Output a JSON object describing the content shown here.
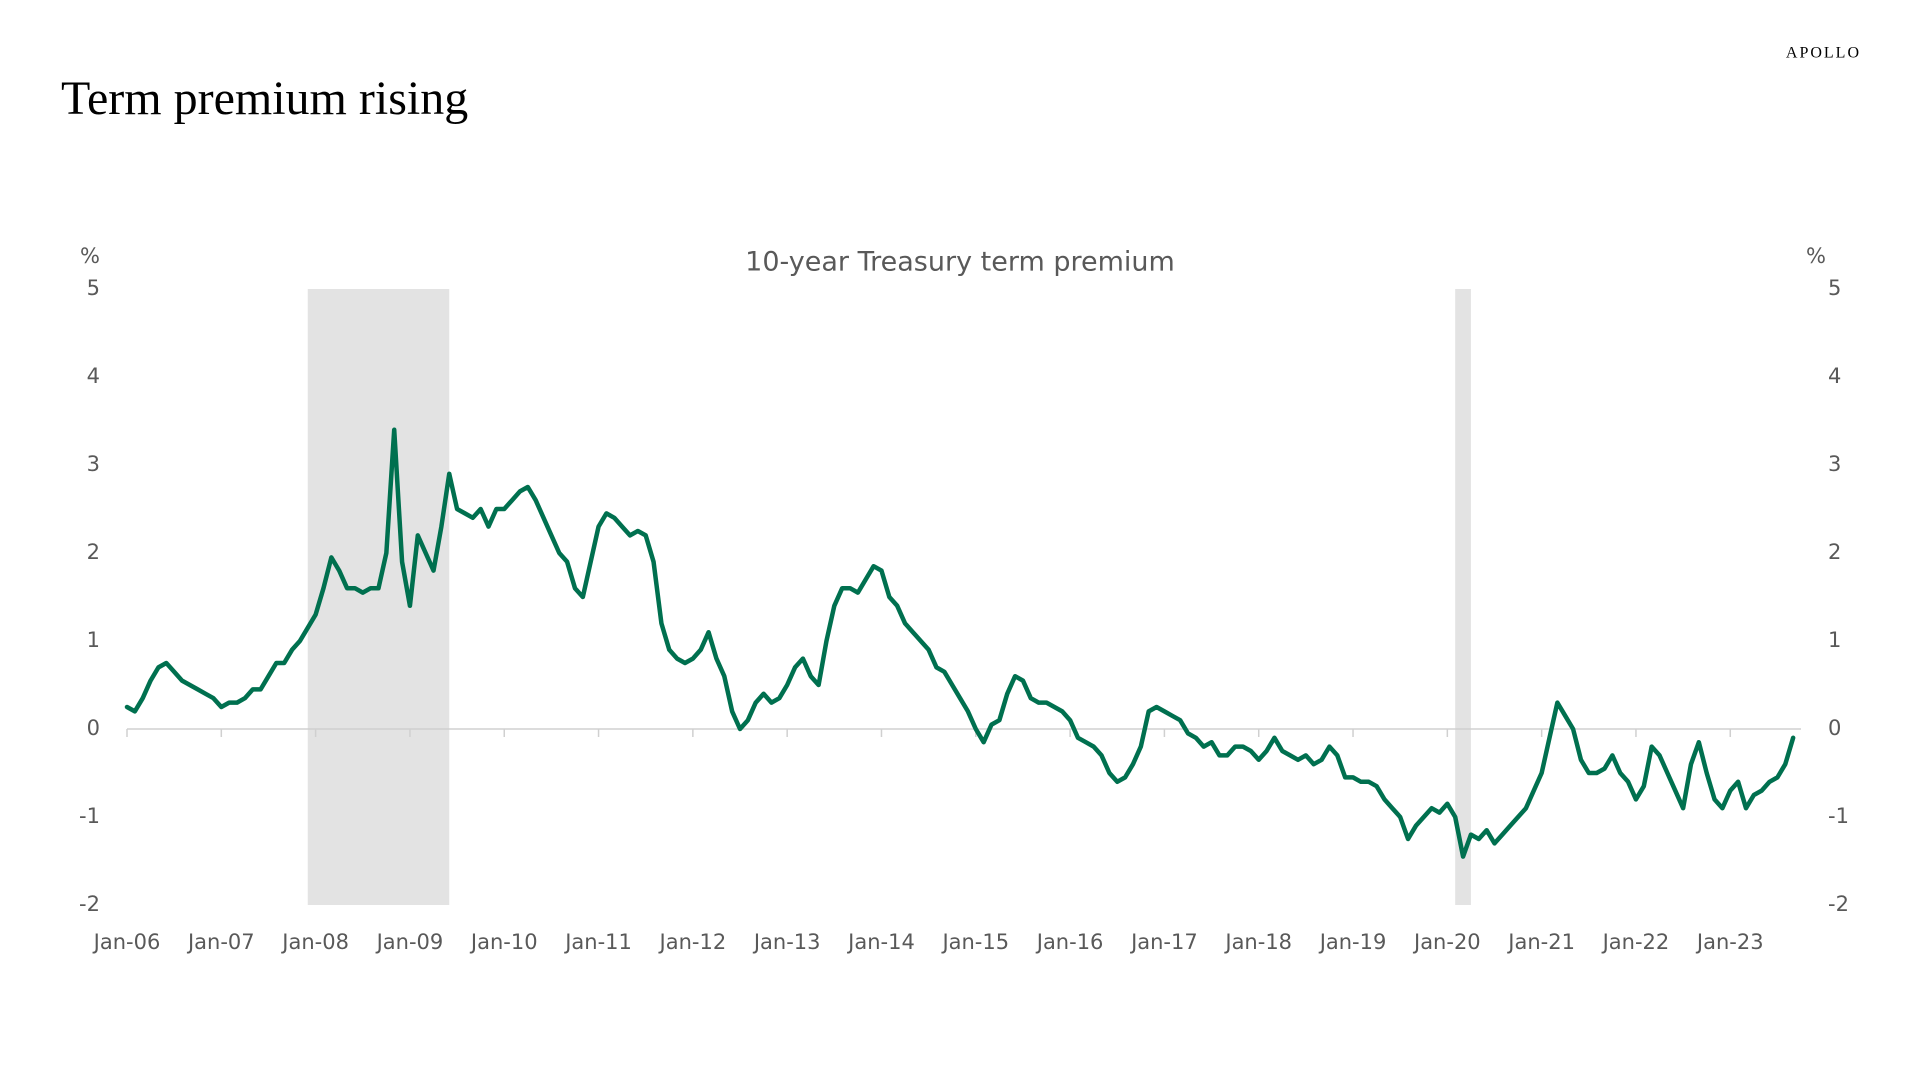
{
  "brand": "APOLLO",
  "chart_data": {
    "type": "line",
    "title": "Term premium rising",
    "subtitle": "10-year Treasury term premium",
    "y_label": "%",
    "y2_label": "%",
    "color": "#00704f",
    "shade_color": "#e3e3e3",
    "xlim": [
      "2006-01",
      "2023-10"
    ],
    "xticks": [
      {
        "value": "2006-01",
        "label": "Jan-06"
      },
      {
        "value": "2007-01",
        "label": "Jan-07"
      },
      {
        "value": "2008-01",
        "label": "Jan-08"
      },
      {
        "value": "2009-01",
        "label": "Jan-09"
      },
      {
        "value": "2010-01",
        "label": "Jan-10"
      },
      {
        "value": "2011-01",
        "label": "Jan-11"
      },
      {
        "value": "2012-01",
        "label": "Jan-12"
      },
      {
        "value": "2013-01",
        "label": "Jan-13"
      },
      {
        "value": "2014-01",
        "label": "Jan-14"
      },
      {
        "value": "2015-01",
        "label": "Jan-15"
      },
      {
        "value": "2016-01",
        "label": "Jan-16"
      },
      {
        "value": "2017-01",
        "label": "Jan-17"
      },
      {
        "value": "2018-01",
        "label": "Jan-18"
      },
      {
        "value": "2019-01",
        "label": "Jan-19"
      },
      {
        "value": "2020-01",
        "label": "Jan-20"
      },
      {
        "value": "2021-01",
        "label": "Jan-21"
      },
      {
        "value": "2022-01",
        "label": "Jan-22"
      },
      {
        "value": "2023-01",
        "label": "Jan-23"
      }
    ],
    "ylim": [
      -2,
      5
    ],
    "yticks": [
      -2,
      -1,
      0,
      1,
      2,
      3,
      4,
      5
    ],
    "y2lim": [
      -2,
      5
    ],
    "y2ticks": [
      -2,
      -1,
      0,
      1,
      2,
      3,
      4,
      5
    ],
    "shaded_periods": [
      {
        "start": "2007-12",
        "end": "2009-06"
      },
      {
        "start": "2020-02",
        "end": "2020-04"
      }
    ],
    "x": [
      "2006-01",
      "2006-02",
      "2006-03",
      "2006-04",
      "2006-05",
      "2006-06",
      "2006-07",
      "2006-08",
      "2006-09",
      "2006-10",
      "2006-11",
      "2006-12",
      "2007-01",
      "2007-02",
      "2007-03",
      "2007-04",
      "2007-05",
      "2007-06",
      "2007-07",
      "2007-08",
      "2007-09",
      "2007-10",
      "2007-11",
      "2007-12",
      "2008-01",
      "2008-02",
      "2008-03",
      "2008-04",
      "2008-05",
      "2008-06",
      "2008-07",
      "2008-08",
      "2008-09",
      "2008-10",
      "2008-11",
      "2008-12",
      "2009-01",
      "2009-02",
      "2009-03",
      "2009-04",
      "2009-05",
      "2009-06",
      "2009-07",
      "2009-08",
      "2009-09",
      "2009-10",
      "2009-11",
      "2009-12",
      "2010-01",
      "2010-02",
      "2010-03",
      "2010-04",
      "2010-05",
      "2010-06",
      "2010-07",
      "2010-08",
      "2010-09",
      "2010-10",
      "2010-11",
      "2010-12",
      "2011-01",
      "2011-02",
      "2011-03",
      "2011-04",
      "2011-05",
      "2011-06",
      "2011-07",
      "2011-08",
      "2011-09",
      "2011-10",
      "2011-11",
      "2011-12",
      "2012-01",
      "2012-02",
      "2012-03",
      "2012-04",
      "2012-05",
      "2012-06",
      "2012-07",
      "2012-08",
      "2012-09",
      "2012-10",
      "2012-11",
      "2012-12",
      "2013-01",
      "2013-02",
      "2013-03",
      "2013-04",
      "2013-05",
      "2013-06",
      "2013-07",
      "2013-08",
      "2013-09",
      "2013-10",
      "2013-11",
      "2013-12",
      "2014-01",
      "2014-02",
      "2014-03",
      "2014-04",
      "2014-05",
      "2014-06",
      "2014-07",
      "2014-08",
      "2014-09",
      "2014-10",
      "2014-11",
      "2014-12",
      "2015-01",
      "2015-02",
      "2015-03",
      "2015-04",
      "2015-05",
      "2015-06",
      "2015-07",
      "2015-08",
      "2015-09",
      "2015-10",
      "2015-11",
      "2015-12",
      "2016-01",
      "2016-02",
      "2016-03",
      "2016-04",
      "2016-05",
      "2016-06",
      "2016-07",
      "2016-08",
      "2016-09",
      "2016-10",
      "2016-11",
      "2016-12",
      "2017-01",
      "2017-02",
      "2017-03",
      "2017-04",
      "2017-05",
      "2017-06",
      "2017-07",
      "2017-08",
      "2017-09",
      "2017-10",
      "2017-11",
      "2017-12",
      "2018-01",
      "2018-02",
      "2018-03",
      "2018-04",
      "2018-05",
      "2018-06",
      "2018-07",
      "2018-08",
      "2018-09",
      "2018-10",
      "2018-11",
      "2018-12",
      "2019-01",
      "2019-02",
      "2019-03",
      "2019-04",
      "2019-05",
      "2019-06",
      "2019-07",
      "2019-08",
      "2019-09",
      "2019-10",
      "2019-11",
      "2019-12",
      "2020-01",
      "2020-02",
      "2020-03",
      "2020-04",
      "2020-05",
      "2020-06",
      "2020-07",
      "2020-08",
      "2020-09",
      "2020-10",
      "2020-11",
      "2020-12",
      "2021-01",
      "2021-02",
      "2021-03",
      "2021-04",
      "2021-05",
      "2021-06",
      "2021-07",
      "2021-08",
      "2021-09",
      "2021-10",
      "2021-11",
      "2021-12",
      "2022-01",
      "2022-02",
      "2022-03",
      "2022-04",
      "2022-05",
      "2022-06",
      "2022-07",
      "2022-08",
      "2022-09",
      "2022-10",
      "2022-11",
      "2022-12",
      "2023-01",
      "2023-02",
      "2023-03",
      "2023-04",
      "2023-05",
      "2023-06",
      "2023-07",
      "2023-08",
      "2023-09"
    ],
    "values": [
      0.25,
      0.2,
      0.35,
      0.55,
      0.7,
      0.75,
      0.65,
      0.55,
      0.5,
      0.45,
      0.4,
      0.35,
      0.25,
      0.3,
      0.3,
      0.35,
      0.45,
      0.45,
      0.6,
      0.75,
      0.75,
      0.9,
      1.0,
      1.15,
      1.3,
      1.6,
      1.95,
      1.8,
      1.6,
      1.6,
      1.55,
      1.6,
      1.6,
      2.0,
      3.4,
      1.9,
      1.4,
      2.2,
      2.0,
      1.8,
      2.3,
      2.9,
      2.5,
      2.45,
      2.4,
      2.5,
      2.3,
      2.5,
      2.5,
      2.6,
      2.7,
      2.75,
      2.6,
      2.4,
      2.2,
      2.0,
      1.9,
      1.6,
      1.5,
      1.9,
      2.3,
      2.45,
      2.4,
      2.3,
      2.2,
      2.25,
      2.2,
      1.9,
      1.2,
      0.9,
      0.8,
      0.75,
      0.8,
      0.9,
      1.1,
      0.8,
      0.6,
      0.2,
      0.0,
      0.1,
      0.3,
      0.4,
      0.3,
      0.35,
      0.5,
      0.7,
      0.8,
      0.6,
      0.5,
      1.0,
      1.4,
      1.6,
      1.6,
      1.55,
      1.7,
      1.85,
      1.8,
      1.5,
      1.4,
      1.2,
      1.1,
      1.0,
      0.9,
      0.7,
      0.65,
      0.5,
      0.35,
      0.2,
      0.0,
      -0.15,
      0.05,
      0.1,
      0.4,
      0.6,
      0.55,
      0.35,
      0.3,
      0.3,
      0.25,
      0.2,
      0.1,
      -0.1,
      -0.15,
      -0.2,
      -0.3,
      -0.5,
      -0.6,
      -0.55,
      -0.4,
      -0.2,
      0.2,
      0.25,
      0.2,
      0.15,
      0.1,
      -0.05,
      -0.1,
      -0.2,
      -0.15,
      -0.3,
      -0.3,
      -0.2,
      -0.2,
      -0.25,
      -0.35,
      -0.25,
      -0.1,
      -0.25,
      -0.3,
      -0.35,
      -0.3,
      -0.4,
      -0.35,
      -0.2,
      -0.3,
      -0.55,
      -0.55,
      -0.6,
      -0.6,
      -0.65,
      -0.8,
      -0.9,
      -1.0,
      -1.25,
      -1.1,
      -1.0,
      -0.9,
      -0.95,
      -0.85,
      -1.0,
      -1.45,
      -1.2,
      -1.25,
      -1.15,
      -1.3,
      -1.2,
      -1.1,
      -1.0,
      -0.9,
      -0.7,
      -0.5,
      -0.1,
      0.3,
      0.15,
      0.0,
      -0.35,
      -0.5,
      -0.5,
      -0.45,
      -0.3,
      -0.5,
      -0.6,
      -0.8,
      -0.65,
      -0.2,
      -0.3,
      -0.5,
      -0.7,
      -0.9,
      -0.4,
      -0.15,
      -0.5,
      -0.8,
      -0.9,
      -0.7,
      -0.6,
      -0.9,
      -0.75,
      -0.7,
      -0.6,
      -0.55,
      -0.4,
      -0.1
    ]
  }
}
